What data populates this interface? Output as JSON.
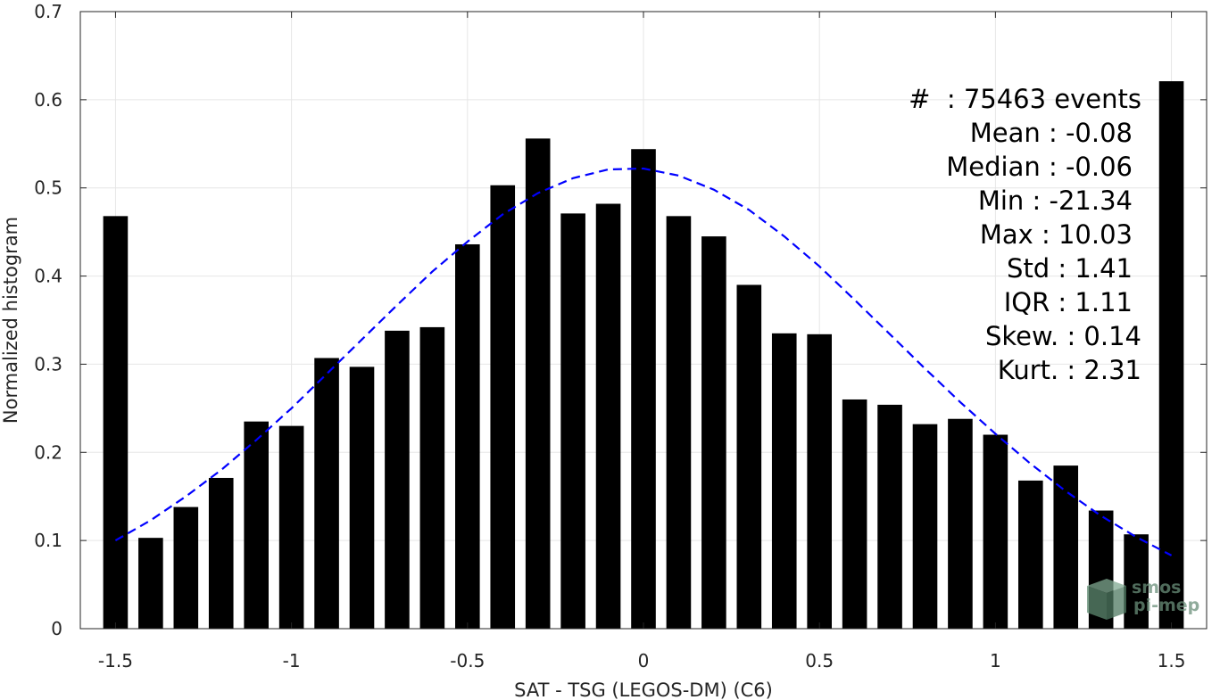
{
  "chart_data": {
    "type": "bar",
    "title": "",
    "xlabel": "SAT - TSG (LEGOS-DM) (C6)",
    "ylabel": "Normalized histogram",
    "xlim": [
      -1.6,
      1.6
    ],
    "ylim": [
      0,
      0.7
    ],
    "grid": true,
    "x_ticks": [
      -1.5,
      -1,
      -0.5,
      0,
      0.5,
      1,
      1.5
    ],
    "x_tick_labels": [
      "-1.5",
      "-1",
      "-0.5",
      "0",
      "0.5",
      "1",
      "1.5"
    ],
    "y_ticks": [
      0,
      0.1,
      0.2,
      0.3,
      0.4,
      0.5,
      0.6,
      0.7
    ],
    "y_tick_labels": [
      "0",
      "0.1",
      "0.2",
      "0.3",
      "0.4",
      "0.5",
      "0.6",
      "0.7"
    ],
    "bar_color": "#000000",
    "bar_width": 0.07,
    "bars": {
      "x": [
        -1.5,
        -1.4,
        -1.3,
        -1.2,
        -1.1,
        -1.0,
        -0.9,
        -0.8,
        -0.7,
        -0.6,
        -0.5,
        -0.4,
        -0.3,
        -0.2,
        -0.1,
        0.0,
        0.1,
        0.2,
        0.3,
        0.4,
        0.5,
        0.6,
        0.7,
        0.8,
        0.9,
        1.0,
        1.1,
        1.2,
        1.3,
        1.4,
        1.5
      ],
      "values": [
        0.468,
        0.103,
        0.138,
        0.171,
        0.235,
        0.23,
        0.307,
        0.297,
        0.338,
        0.342,
        0.436,
        0.503,
        0.556,
        0.471,
        0.482,
        0.544,
        0.468,
        0.445,
        0.39,
        0.335,
        0.334,
        0.26,
        0.254,
        0.232,
        0.238,
        0.22,
        0.168,
        0.185,
        0.134,
        0.107,
        0.621
      ]
    },
    "fit_curve": {
      "style": "dashed",
      "color": "#0000ff",
      "x": [
        -1.5,
        -1.4,
        -1.3,
        -1.2,
        -1.1,
        -1.0,
        -0.9,
        -0.8,
        -0.7,
        -0.6,
        -0.5,
        -0.4,
        -0.3,
        -0.2,
        -0.1,
        0.0,
        0.1,
        0.2,
        0.3,
        0.4,
        0.5,
        0.6,
        0.7,
        0.8,
        0.9,
        1.0,
        1.1,
        1.2,
        1.3,
        1.4,
        1.5
      ],
      "values": [
        0.1,
        0.123,
        0.15,
        0.18,
        0.214,
        0.25,
        0.289,
        0.328,
        0.367,
        0.405,
        0.439,
        0.47,
        0.494,
        0.511,
        0.521,
        0.522,
        0.514,
        0.498,
        0.475,
        0.445,
        0.411,
        0.373,
        0.334,
        0.295,
        0.257,
        0.221,
        0.187,
        0.156,
        0.128,
        0.104,
        0.083
      ]
    },
    "annotations": [
      "#  : 75463 events",
      "Mean : -0.08",
      "Median : -0.06",
      "Min : -21.34",
      "Max : 10.03",
      "Std : 1.41",
      "IQR : 1.11",
      "Skew. : 0.14",
      "Kurt. : 2.31"
    ]
  },
  "logo": {
    "line1": "smos",
    "line2": "pi-mep"
  }
}
